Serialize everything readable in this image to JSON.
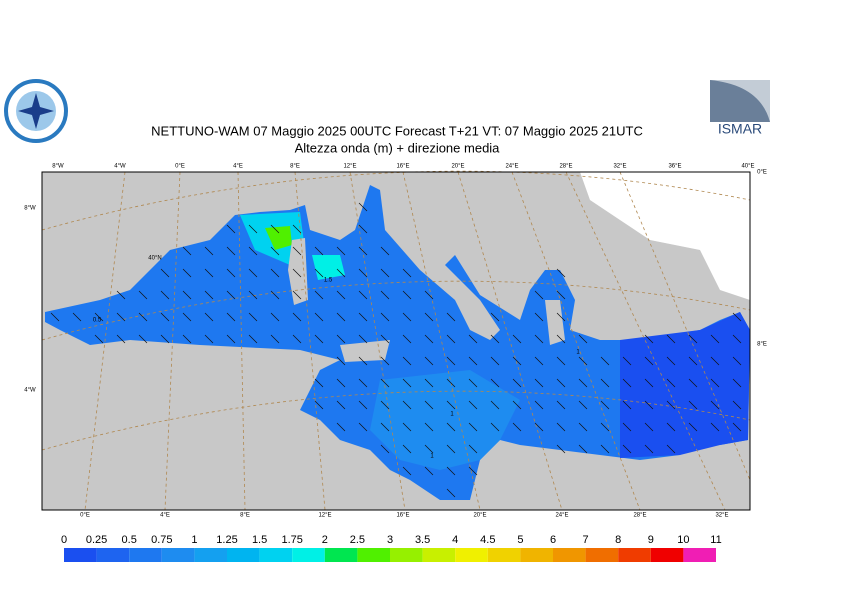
{
  "header": {
    "title": "NETTUNO-WAM  07   Maggio  2025 00UTC Forecast T+21 VT: 07   Maggio  2025 21UTC",
    "subtitle": "Altezza onda (m) + direzione media",
    "logo_text": "ISMAR"
  },
  "map": {
    "top_labels": [
      "8°W",
      "4°W",
      "0°E",
      "4°E",
      "8°E",
      "12°E",
      "16°E",
      "20°E",
      "24°E",
      "28°E",
      "32°E",
      "36°E",
      "40°E"
    ],
    "bottom_labels": [
      "0°E",
      "4°E",
      "8°E",
      "12°E",
      "16°E",
      "20°E",
      "24°E",
      "28°E",
      "32°E"
    ],
    "left_labels": [
      "8°W",
      "4°W"
    ],
    "right_labels": [
      "0°E",
      "8°E"
    ],
    "inner_labels": [
      "40°N"
    ],
    "contour_labels": [
      "0.5",
      "1.5",
      "1",
      "1",
      "1"
    ]
  },
  "colorbar": {
    "ticks": [
      0,
      0.25,
      0.5,
      0.75,
      1,
      1.25,
      1.5,
      1.75,
      2,
      2.5,
      3,
      3.5,
      4,
      4.5,
      5,
      6,
      7,
      8,
      9,
      10,
      11
    ],
    "colors": [
      "#1a4ff0",
      "#1e64f0",
      "#1e78f0",
      "#1e8cf0",
      "#14a0f0",
      "#00b4f0",
      "#00d2f0",
      "#00f0e6",
      "#00e650",
      "#50f000",
      "#96f000",
      "#c8f000",
      "#f0f000",
      "#f0d200",
      "#f0b400",
      "#f09600",
      "#f06e00",
      "#f03c00",
      "#f00000",
      "#f01eb4"
    ]
  }
}
